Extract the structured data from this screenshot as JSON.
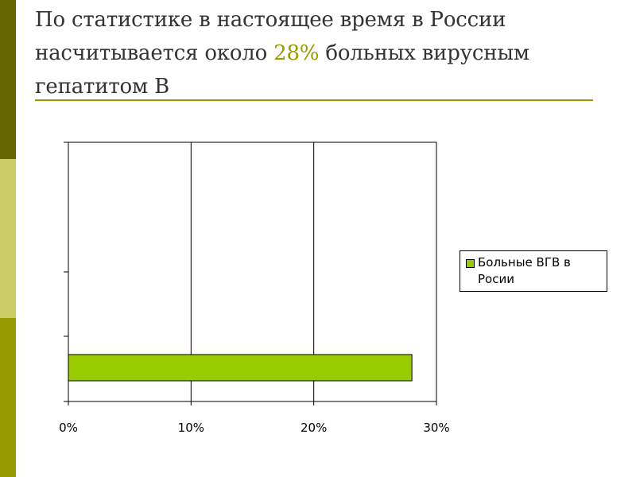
{
  "slide": {
    "title_part1": "По статистике в настоящее время в России насчитывается около ",
    "title_highlight": "28%",
    "title_part2": " больных вирусным гепатитом В",
    "colors": {
      "accent_dark": "#666600",
      "accent_light": "#cccc66",
      "accent_mid": "#999900",
      "title_text": "#333333",
      "highlight": "#999900",
      "rule": "#999900"
    }
  },
  "chart_data": {
    "type": "bar",
    "orientation": "horizontal",
    "categories": [
      ""
    ],
    "series": [
      {
        "name": "Больные ВГВ в Росии",
        "values": [
          28
        ],
        "color": "#99cc00"
      }
    ],
    "xlim": [
      0,
      30
    ],
    "x_ticks": [
      "0%",
      "10%",
      "20%",
      "30%"
    ],
    "x_tick_values": [
      0,
      10,
      20,
      30
    ],
    "grid": "vertical",
    "legend_position": "right",
    "title": "",
    "xlabel": "",
    "ylabel": ""
  }
}
